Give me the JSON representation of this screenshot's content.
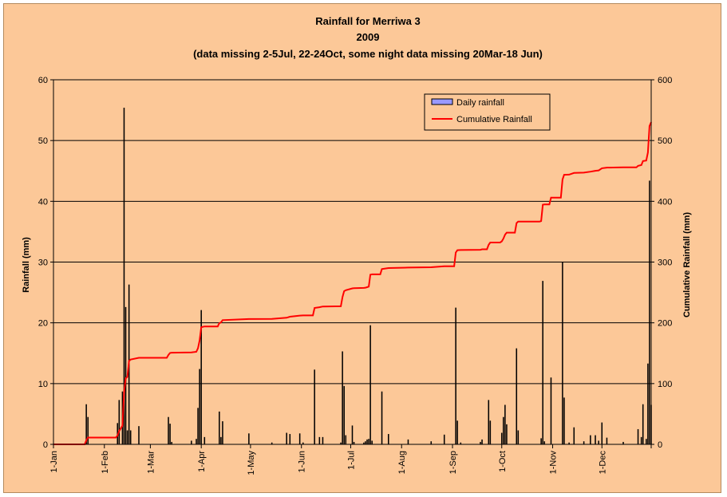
{
  "chart_data": {
    "type": "bar",
    "title": "Rainfall for Merriwa 3",
    "subtitle": "2009",
    "note": "(data missing 2-5Jul, 22-24Oct, some night data missing 20Mar-18 Jun)",
    "ylabel": "Rainfall (mm)",
    "y2label": "Cumulative Rainfall (mm)",
    "ylim": [
      0,
      60
    ],
    "y2lim": [
      0,
      600
    ],
    "yticks": [
      "0",
      "10",
      "20",
      "30",
      "40",
      "50",
      "60"
    ],
    "y2ticks": [
      "0",
      "100",
      "200",
      "300",
      "400",
      "500",
      "600"
    ],
    "xlim_days": [
      1,
      365
    ],
    "xticks": [
      {
        "label": "1-Jan",
        "day": 1
      },
      {
        "label": "1-Feb",
        "day": 32
      },
      {
        "label": "1-Mar",
        "day": 60
      },
      {
        "label": "1-Apr",
        "day": 91
      },
      {
        "label": "1-May",
        "day": 121
      },
      {
        "label": "1-Jun",
        "day": 152
      },
      {
        "label": "1-Jul",
        "day": 182
      },
      {
        "label": "1-Aug",
        "day": 213
      },
      {
        "label": "1-Sep",
        "day": 244
      },
      {
        "label": "1-Oct",
        "day": 274
      },
      {
        "label": "1-Nov",
        "day": 305
      },
      {
        "label": "1-Dec",
        "day": 335
      }
    ],
    "grid": true,
    "legend_position": "top-right",
    "colors": {
      "bar": "#000000",
      "bar_legend_fill": "#9999ff",
      "line": "#ff0000",
      "grid": "#000000",
      "background": "#fcc898"
    },
    "series": [
      {
        "name": "Daily rainfall",
        "type": "bar",
        "axis": "left",
        "points": [
          [
            21,
            6.6
          ],
          [
            22,
            4.5
          ],
          [
            40,
            3.5
          ],
          [
            41,
            7.3
          ],
          [
            43,
            8.7
          ],
          [
            44,
            55.4
          ],
          [
            45,
            22.6
          ],
          [
            46,
            2.3
          ],
          [
            47,
            26.3
          ],
          [
            48,
            2.3
          ],
          [
            53,
            3.0
          ],
          [
            71,
            4.5
          ],
          [
            72,
            3.4
          ],
          [
            73,
            0.4
          ],
          [
            85,
            0.6
          ],
          [
            88,
            0.9
          ],
          [
            89,
            6.0
          ],
          [
            90,
            12.4
          ],
          [
            91,
            22.1
          ],
          [
            93,
            1.2
          ],
          [
            102,
            5.4
          ],
          [
            103,
            1.2
          ],
          [
            104,
            3.8
          ],
          [
            120,
            1.8
          ],
          [
            134,
            0.3
          ],
          [
            143,
            1.9
          ],
          [
            145,
            1.7
          ],
          [
            151,
            1.8
          ],
          [
            153,
            0.3
          ],
          [
            160,
            12.3
          ],
          [
            163,
            1.2
          ],
          [
            165,
            1.2
          ],
          [
            176,
            0.3
          ],
          [
            177,
            15.3
          ],
          [
            178,
            9.6
          ],
          [
            179,
            1.5
          ],
          [
            183,
            3.1
          ],
          [
            184,
            0.4
          ],
          [
            190,
            0.3
          ],
          [
            191,
            0.5
          ],
          [
            192,
            0.8
          ],
          [
            193,
            0.9
          ],
          [
            194,
            19.6
          ],
          [
            195,
            0.6
          ],
          [
            201,
            8.7
          ],
          [
            205,
            1.7
          ],
          [
            217,
            0.8
          ],
          [
            231,
            0.5
          ],
          [
            239,
            1.6
          ],
          [
            246,
            22.5
          ],
          [
            247,
            3.9
          ],
          [
            249,
            0.3
          ],
          [
            261,
            0.4
          ],
          [
            262,
            0.8
          ],
          [
            266,
            7.3
          ],
          [
            267,
            3.9
          ],
          [
            274,
            1.9
          ],
          [
            275,
            4.5
          ],
          [
            276,
            6.5
          ],
          [
            277,
            3.3
          ],
          [
            283,
            15.8
          ],
          [
            284,
            2.3
          ],
          [
            298,
            1.0
          ],
          [
            299,
            26.9
          ],
          [
            300,
            0.5
          ],
          [
            304,
            11.0
          ],
          [
            311,
            30.0
          ],
          [
            312,
            7.7
          ],
          [
            315,
            0.3
          ],
          [
            318,
            2.8
          ],
          [
            324,
            0.5
          ],
          [
            328,
            1.5
          ],
          [
            331,
            1.5
          ],
          [
            333,
            0.6
          ],
          [
            335,
            3.6
          ],
          [
            338,
            1.1
          ],
          [
            348,
            0.4
          ],
          [
            357,
            2.5
          ],
          [
            359,
            1.2
          ],
          [
            360,
            6.6
          ],
          [
            362,
            0.9
          ],
          [
            363,
            13.3
          ],
          [
            364,
            43.4
          ],
          [
            365,
            6.5
          ]
        ]
      },
      {
        "name": "Cumulative Rainfall",
        "type": "line",
        "axis": "right",
        "points": [
          [
            1,
            0
          ],
          [
            20,
            0
          ],
          [
            21,
            6.6
          ],
          [
            22,
            11.1
          ],
          [
            39,
            11.1
          ],
          [
            40,
            14.6
          ],
          [
            41,
            21.9
          ],
          [
            43,
            30.6
          ],
          [
            44,
            86.0
          ],
          [
            45,
            108.6
          ],
          [
            46,
            110.9
          ],
          [
            47,
            137.2
          ],
          [
            48,
            139.5
          ],
          [
            53,
            142.5
          ],
          [
            70,
            142.5
          ],
          [
            71,
            147.0
          ],
          [
            72,
            150.4
          ],
          [
            73,
            150.8
          ],
          [
            85,
            151.4
          ],
          [
            88,
            152.3
          ],
          [
            89,
            158.3
          ],
          [
            90,
            170.7
          ],
          [
            91,
            192.8
          ],
          [
            93,
            194.0
          ],
          [
            101,
            194.0
          ],
          [
            102,
            199.4
          ],
          [
            103,
            200.6
          ],
          [
            104,
            204.4
          ],
          [
            120,
            206.2
          ],
          [
            134,
            206.5
          ],
          [
            143,
            208.4
          ],
          [
            145,
            210.1
          ],
          [
            151,
            211.9
          ],
          [
            153,
            212.2
          ],
          [
            159,
            212.2
          ],
          [
            160,
            224.5
          ],
          [
            163,
            225.7
          ],
          [
            165,
            226.9
          ],
          [
            176,
            227.2
          ],
          [
            177,
            242.5
          ],
          [
            178,
            252.1
          ],
          [
            179,
            253.6
          ],
          [
            183,
            256.7
          ],
          [
            184,
            257.1
          ],
          [
            190,
            257.4
          ],
          [
            191,
            257.9
          ],
          [
            192,
            258.7
          ],
          [
            193,
            259.6
          ],
          [
            194,
            279.2
          ],
          [
            195,
            279.8
          ],
          [
            200,
            279.8
          ],
          [
            201,
            288.5
          ],
          [
            205,
            290.2
          ],
          [
            217,
            291.0
          ],
          [
            231,
            291.5
          ],
          [
            239,
            293.1
          ],
          [
            245,
            293.1
          ],
          [
            246,
            315.6
          ],
          [
            247,
            319.5
          ],
          [
            249,
            319.8
          ],
          [
            261,
            320.2
          ],
          [
            262,
            321.0
          ],
          [
            265,
            321.0
          ],
          [
            266,
            328.3
          ],
          [
            267,
            332.2
          ],
          [
            273,
            332.2
          ],
          [
            274,
            334.1
          ],
          [
            275,
            338.6
          ],
          [
            276,
            345.1
          ],
          [
            277,
            348.4
          ],
          [
            282,
            348.4
          ],
          [
            283,
            364.2
          ],
          [
            284,
            366.5
          ],
          [
            297,
            366.5
          ],
          [
            298,
            367.5
          ],
          [
            299,
            394.4
          ],
          [
            300,
            394.9
          ],
          [
            303,
            394.9
          ],
          [
            304,
            405.9
          ],
          [
            310,
            405.9
          ],
          [
            311,
            435.9
          ],
          [
            312,
            443.6
          ],
          [
            315,
            443.9
          ],
          [
            318,
            446.7
          ],
          [
            324,
            447.2
          ],
          [
            328,
            448.7
          ],
          [
            331,
            450.2
          ],
          [
            333,
            450.8
          ],
          [
            335,
            454.4
          ],
          [
            338,
            455.5
          ],
          [
            348,
            455.9
          ],
          [
            356,
            455.9
          ],
          [
            357,
            458.4
          ],
          [
            359,
            459.6
          ],
          [
            360,
            466.2
          ],
          [
            362,
            467.1
          ],
          [
            363,
            480.4
          ],
          [
            364,
            523.8
          ],
          [
            365,
            530.3
          ]
        ]
      }
    ]
  }
}
